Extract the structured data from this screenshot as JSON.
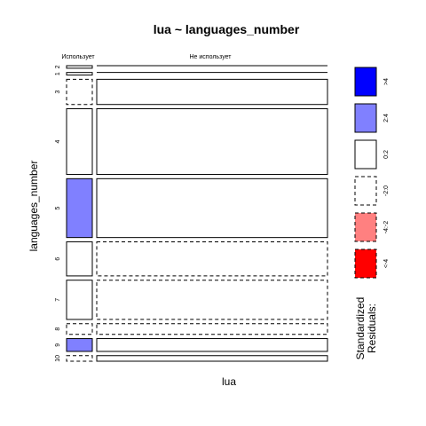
{
  "chart_data": {
    "type": "mosaic",
    "title": "lua ~ languages_number",
    "xlabel": "lua",
    "ylabel": "languages_number",
    "column_categories": [
      "Использует",
      "Не использует"
    ],
    "row_categories": [
      "2",
      "1",
      "3",
      "4",
      "5",
      "6",
      "7",
      "8",
      "9",
      "10"
    ],
    "cells": [
      {
        "row": "2",
        "col": "Использует",
        "share": 0.006,
        "residual_band": "<-2:0"
      },
      {
        "row": "2",
        "col": "Не использует",
        "share": 0.0,
        "residual_band": "0:2"
      },
      {
        "row": "1",
        "col": "Использует",
        "share": 0.006,
        "residual_band": "<-2:0"
      },
      {
        "row": "1",
        "col": "Не использует",
        "share": 0.0,
        "residual_band": "0:2"
      },
      {
        "row": "3",
        "col": "Использует",
        "share": 0.027,
        "residual_band": "-2:0"
      },
      {
        "row": "3",
        "col": "Не использует",
        "share": 0.032,
        "residual_band": "0:2"
      },
      {
        "row": "4",
        "col": "Использует",
        "share": 0.054,
        "residual_band": "0:2"
      },
      {
        "row": "4",
        "col": "Не использует",
        "share": 0.1,
        "residual_band": "0:2"
      },
      {
        "row": "5",
        "col": "Использует",
        "share": 0.076,
        "residual_band": "2:4"
      },
      {
        "row": "5",
        "col": "Не использует",
        "share": 0.062,
        "residual_band": "0:2"
      },
      {
        "row": "6",
        "col": "Использует",
        "share": 0.05,
        "residual_band": "0:2"
      },
      {
        "row": "6",
        "col": "Не использует",
        "share": 0.03,
        "residual_band": "-2:0"
      },
      {
        "row": "7",
        "col": "Использует",
        "share": 0.052,
        "residual_band": "0:2"
      },
      {
        "row": "7",
        "col": "Не использует",
        "share": 0.04,
        "residual_band": "-2:0"
      },
      {
        "row": "8",
        "col": "Использует",
        "share": 0.003,
        "residual_band": "-2:0"
      },
      {
        "row": "8",
        "col": "Не использует",
        "share": 0.022,
        "residual_band": "-2:0"
      },
      {
        "row": "9",
        "col": "Использует",
        "share": 0.026,
        "residual_band": "2:4"
      },
      {
        "row": "9",
        "col": "Не использует",
        "share": 0.004,
        "residual_band": "0:2"
      },
      {
        "row": "10",
        "col": "Использует",
        "share": 0.003,
        "residual_band": "-2:0"
      },
      {
        "row": "10",
        "col": "Не использует",
        "share": 0.01,
        "residual_band": "0:2"
      }
    ],
    "legend": {
      "title": "Standardized\nResiduals:",
      "title_lines": [
        "Standardized",
        "Residuals:"
      ],
      "entries": [
        {
          "label": ">4",
          "color": "#0000FF",
          "dashed": false
        },
        {
          "label": "2:4",
          "color": "#8080FF",
          "dashed": false
        },
        {
          "label": "0:2",
          "color": "#FFFFFF",
          "dashed": false
        },
        {
          "label": "-2:0",
          "color": "#FFFFFF",
          "dashed": true
        },
        {
          "label": "-4:-2",
          "color": "#FF8080",
          "dashed": true
        },
        {
          "label": "<-4",
          "color": "#FF0000",
          "dashed": true
        }
      ],
      "placement": "right"
    }
  }
}
